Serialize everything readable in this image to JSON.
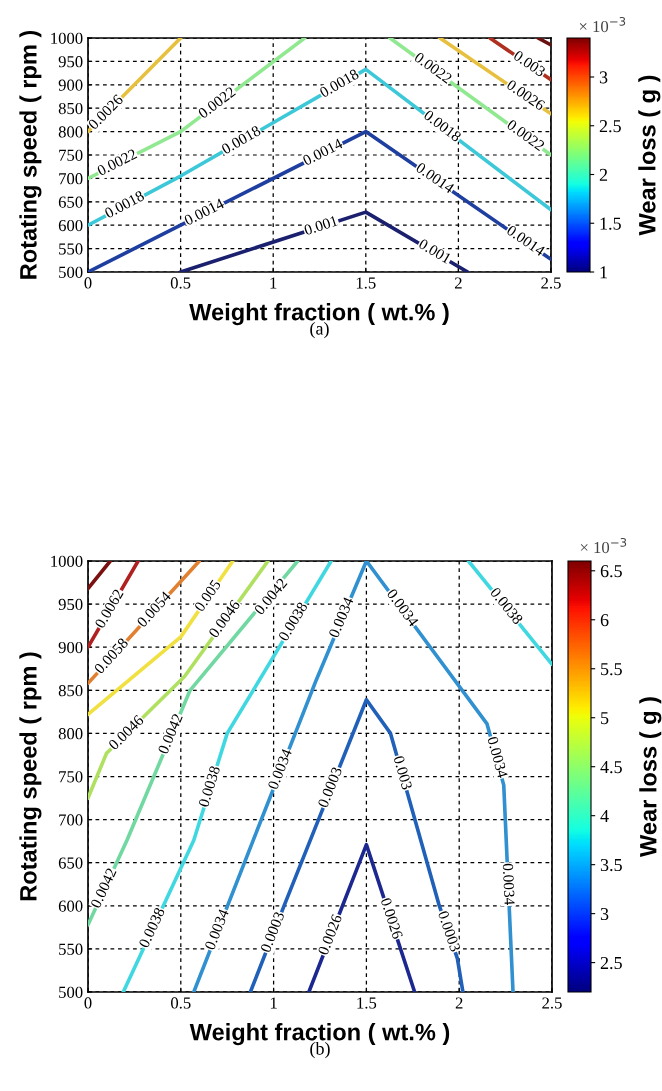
{
  "chart_data": [
    {
      "type": "line",
      "xlabel": "Weight fraction ( wt.% )",
      "ylabel": "Rotating speed ( rpm )",
      "clabel": "Wear loss ( g )",
      "xlim": [
        0,
        2.5
      ],
      "ylim": [
        500,
        1000
      ],
      "xticks": [
        0,
        0.5,
        1,
        1.5,
        2,
        2.5
      ],
      "yticks": [
        500,
        550,
        600,
        650,
        700,
        750,
        800,
        850,
        900,
        950,
        1000
      ],
      "grid": true,
      "clim": [
        1,
        3.4
      ],
      "cticks": [
        1,
        1.5,
        2,
        2.5,
        3
      ],
      "series": [
        {
          "color": "#1a1f6e",
          "x": [
            0.5,
            1.5,
            2.05
          ],
          "values": [
            500,
            628,
            500
          ]
        },
        {
          "color": "#1f3fa0",
          "x": [
            0,
            1.5,
            2.5
          ],
          "values": [
            500,
            800,
            527
          ]
        },
        {
          "color": "#3cc8d8",
          "x": [
            0,
            0.5,
            1.5,
            2.5
          ],
          "values": [
            600,
            705,
            933,
            633
          ]
        },
        {
          "color": "#90e890",
          "x": [
            0,
            0.5,
            1.17
          ],
          "values": [
            700,
            800,
            1000
          ]
        },
        {
          "color": "#90e890",
          "x": [
            1.63,
            2.5
          ],
          "values": [
            1000,
            750
          ]
        },
        {
          "color": "#e8c040",
          "x": [
            0,
            0.5
          ],
          "values": [
            800,
            1000
          ]
        },
        {
          "color": "#e8c040",
          "x": [
            1.9,
            2.5
          ],
          "values": [
            1000,
            838
          ]
        },
        {
          "color": "#b03020",
          "x": [
            2.17,
            2.5
          ],
          "values": [
            1000,
            911
          ]
        },
        {
          "color": "#6a1010",
          "x": [
            2.43,
            2.5
          ],
          "values": [
            1000,
            985
          ]
        }
      ],
      "annotations": [
        "× 10$^{−3}$",
        "(a)",
        {
          "text": "0.0026",
          "x": 0.1,
          "y": 840
        },
        {
          "text": "0.0022",
          "x": 0.7,
          "y": 860
        },
        {
          "text": "0.0018",
          "x": 1.36,
          "y": 901
        },
        {
          "text": "0.0022",
          "x": 0.16,
          "y": 732
        },
        {
          "text": "0.0018",
          "x": 0.83,
          "y": 780
        },
        {
          "text": "0.0014",
          "x": 1.27,
          "y": 754
        },
        {
          "text": "0.0022",
          "x": 1.86,
          "y": 934
        },
        {
          "text": "0.003",
          "x": 2.38,
          "y": 943
        },
        {
          "text": "0.0026",
          "x": 2.36,
          "y": 876
        },
        {
          "text": "0.0018",
          "x": 1.91,
          "y": 810
        },
        {
          "text": "0.0022",
          "x": 2.36,
          "y": 790
        },
        {
          "text": "0.0014",
          "x": 1.87,
          "y": 699
        },
        {
          "text": "0.0018",
          "x": 0.2,
          "y": 642
        },
        {
          "text": "0.0014",
          "x": 0.63,
          "y": 626
        },
        {
          "text": "0.001",
          "x": 1.26,
          "y": 597
        },
        {
          "text": "0.001",
          "x": 1.87,
          "y": 542
        },
        {
          "text": "0.0014",
          "x": 2.36,
          "y": 565
        }
      ]
    },
    {
      "type": "line",
      "xlabel": "Weight fraction ( wt.% )",
      "ylabel": "Rotating speed ( rpm )",
      "clabel": "Wear loss ( g )",
      "xlim": [
        0,
        2.5
      ],
      "ylim": [
        500,
        1000
      ],
      "xticks": [
        0,
        0.5,
        1,
        1.5,
        2,
        2.5
      ],
      "yticks": [
        500,
        550,
        600,
        650,
        700,
        750,
        800,
        850,
        900,
        950,
        1000
      ],
      "grid": true,
      "clim": [
        2.2,
        6.6
      ],
      "cticks": [
        2.5,
        3,
        3.5,
        4,
        4.5,
        5,
        5.5,
        6,
        6.5
      ],
      "series": [
        {
          "color": "#7a1010",
          "x": [
            0,
            0.12
          ],
          "values": [
            968,
            1000
          ]
        },
        {
          "color": "#b02020",
          "x": [
            0,
            0.27
          ],
          "values": [
            900,
            1000
          ]
        },
        {
          "color": "#e08030",
          "x": [
            0,
            0.6
          ],
          "values": [
            858,
            1000
          ]
        },
        {
          "color": "#f0e040",
          "x": [
            0,
            0.5,
            0.78
          ],
          "values": [
            822,
            912,
            1000
          ]
        },
        {
          "color": "#b0e060",
          "x": [
            0,
            0.1,
            0.52,
            0.97
          ],
          "values": [
            725,
            777,
            866,
            1000
          ]
        },
        {
          "color": "#70d8a0",
          "x": [
            0,
            0.21,
            0.55,
            1.13
          ],
          "values": [
            578,
            676,
            850,
            1000
          ]
        },
        {
          "color": "#40d8e0",
          "x": [
            0.19,
            0.57,
            0.75,
            1.31
          ],
          "values": [
            500,
            676,
            800,
            1000
          ]
        },
        {
          "color": "#3090d0",
          "x": [
            0.57,
            0.89,
            1.23,
            1.5,
            2.15,
            2.24,
            2.29
          ],
          "values": [
            500,
            676,
            862,
            1000,
            811,
            740,
            500
          ]
        },
        {
          "color": "#40d8e0",
          "x": [
            2.05,
            2.5
          ],
          "values": [
            1000,
            880
          ]
        },
        {
          "color": "#2060b8",
          "x": [
            0.875,
            1.06,
            1.5,
            1.63,
            1.89,
            1.99,
            2.02
          ],
          "values": [
            500,
            602,
            839,
            800,
            602,
            539,
            500
          ]
        },
        {
          "color": "#1c2890",
          "x": [
            1.19,
            1.5,
            1.76
          ],
          "values": [
            500,
            671,
            500
          ]
        }
      ],
      "annotations": [
        "× 10$^{−3}$",
        "(b)",
        {
          "text": "0.0062",
          "x": 0.12,
          "y": 944
        },
        {
          "text": "0.0058",
          "x": 0.13,
          "y": 889
        },
        {
          "text": "0.0054",
          "x": 0.36,
          "y": 943
        },
        {
          "text": "0.005",
          "x": 0.65,
          "y": 959
        },
        {
          "text": "0.0046",
          "x": 0.74,
          "y": 932
        },
        {
          "text": "0.0042",
          "x": 0.99,
          "y": 958
        },
        {
          "text": "0.0038",
          "x": 1.11,
          "y": 929
        },
        {
          "text": "0.0034",
          "x": 1.37,
          "y": 934
        },
        {
          "text": "0.0034",
          "x": 1.69,
          "y": 945
        },
        {
          "text": "0.0038",
          "x": 2.25,
          "y": 947
        },
        {
          "text": "0.0046",
          "x": 0.21,
          "y": 800
        },
        {
          "text": "0.0042",
          "x": 0.45,
          "y": 799
        },
        {
          "text": "0.0038",
          "x": 0.66,
          "y": 738
        },
        {
          "text": "0.0034",
          "x": 1.04,
          "y": 758
        },
        {
          "text": "0.0003",
          "x": 1.31,
          "y": 737
        },
        {
          "text": "0.003",
          "x": 1.69,
          "y": 754
        },
        {
          "text": "0.0034",
          "x": 2.2,
          "y": 772
        },
        {
          "text": "0.0042",
          "x": 0.09,
          "y": 620
        },
        {
          "text": "0.0038",
          "x": 0.35,
          "y": 574
        },
        {
          "text": "0.0034",
          "x": 0.7,
          "y": 572
        },
        {
          "text": "0.0003",
          "x": 1.0,
          "y": 569
        },
        {
          "text": "0.0026",
          "x": 1.31,
          "y": 566
        },
        {
          "text": "0.0026",
          "x": 1.63,
          "y": 585
        },
        {
          "text": "0.0003",
          "x": 1.94,
          "y": 570
        },
        {
          "text": "0.0034",
          "x": 2.26,
          "y": 625
        }
      ]
    }
  ]
}
